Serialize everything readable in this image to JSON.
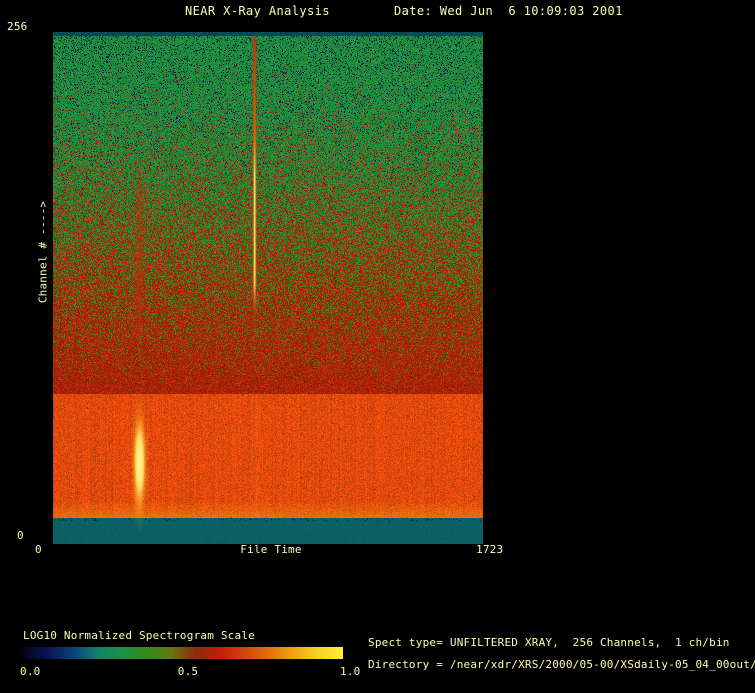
{
  "window": {
    "bg_color": "#000000",
    "text_color": "#ffffae"
  },
  "header": {
    "title": "NEAR X-Ray Analysis",
    "date": "Date: Wed Jun  6 10:09:03 2001"
  },
  "chart_data": {
    "type": "heatmap",
    "title": "NEAR X-Ray Analysis",
    "x_axis": {
      "label": "File Time",
      "ticks": [
        "0",
        "1723"
      ],
      "range": [
        0,
        1723
      ]
    },
    "y_axis": {
      "label": "Channel # ---->",
      "ticks": [
        "0",
        "256"
      ],
      "range": [
        0,
        256
      ]
    },
    "xlim": [
      0,
      1723
    ],
    "ylim": [
      0,
      256
    ],
    "palette": {
      "teal": "#0b6066",
      "teal_top": "#0a5058",
      "navy_speckle": "#0c2355",
      "green_top": "#1e8c3c",
      "green_olive": "#5a7014",
      "red_dark": "#8e1e08",
      "red_bright": "#c82808",
      "orange": "#e24a0c",
      "orange_bright": "#f58c16",
      "flare_red": "#cd3708",
      "flare_hot": "#ffdc55",
      "blob_yellow": "#ffbe1e",
      "blob_core": "#fff08c"
    },
    "bands": [
      {
        "name": "top-teal-band",
        "ch": [
          254,
          256
        ]
      },
      {
        "name": "green-noise-region",
        "ch": [
          197,
          254
        ]
      },
      {
        "name": "green-to-red-mottle",
        "ch": [
          75,
          197
        ]
      },
      {
        "name": "bright-orange-band",
        "ch": [
          13,
          75
        ]
      },
      {
        "name": "bottom-teal-band",
        "ch": [
          0,
          13
        ]
      }
    ],
    "features": [
      {
        "name": "narrow-bright-flare",
        "x": 806,
        "ch": [
          113,
          254
        ],
        "hot_ch": [
          132,
          185
        ]
      },
      {
        "name": "diffuse-red-streak",
        "x": 345,
        "ch": [
          102,
          192
        ]
      },
      {
        "name": "bright-yellow-blob",
        "x": 345,
        "ch": [
          22,
          66
        ],
        "center_ch": 41
      },
      {
        "name": "faint-warm-column",
        "x": 810,
        "ch": [
          13,
          75
        ]
      }
    ],
    "colorbar": {
      "label": "LOG10 Normalized Spectrogram Scale",
      "ticks": [
        "0.0",
        "0.5",
        "1.0"
      ],
      "range": [
        0.0,
        1.0
      ],
      "gradient": [
        "#04041f",
        "#0a1550",
        "#0d3f78",
        "#128070",
        "#1b9148",
        "#2f8c1c",
        "#677712",
        "#8f2a0c",
        "#c41c08",
        "#d2440c",
        "#e2700e",
        "#f0a414",
        "#f8d422",
        "#ffee3c"
      ]
    }
  },
  "footer": {
    "spect_line": "Spect type= UNFILTERED XRAY,  256 Channels,  1 ch/bin",
    "directory_line": "Directory = /near/xdr/XRS/2000/05-00/XSdaily-05_04_00out/"
  }
}
